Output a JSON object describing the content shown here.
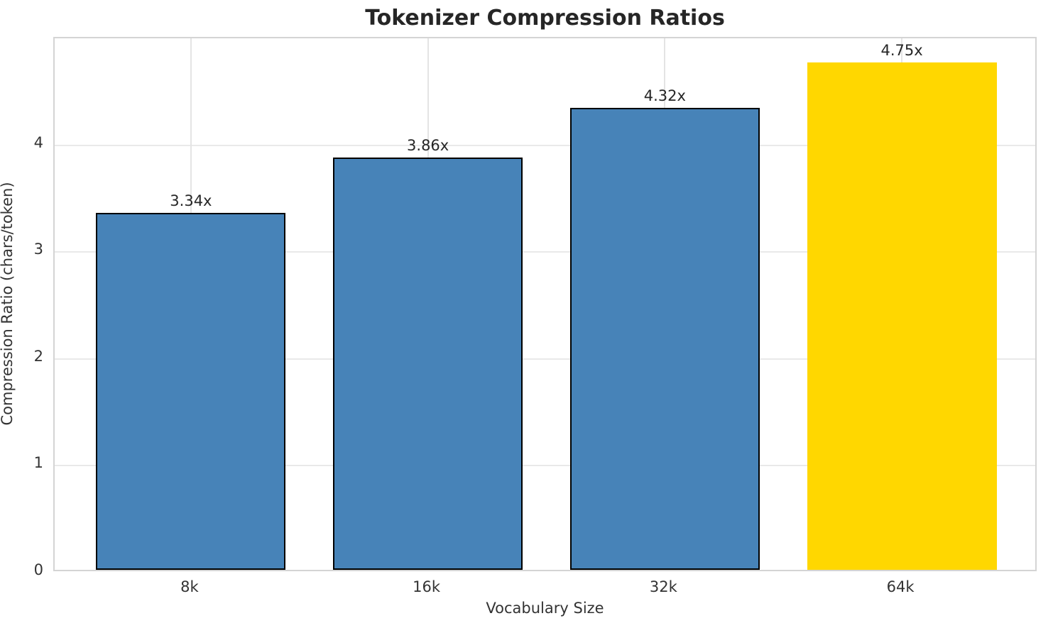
{
  "chart_data": {
    "type": "bar",
    "title": "Tokenizer Compression Ratios",
    "xlabel": "Vocabulary Size",
    "ylabel": "Compression Ratio (chars/token)",
    "categories": [
      "8k",
      "16k",
      "32k",
      "64k"
    ],
    "values": [
      3.34,
      3.86,
      4.32,
      4.75
    ],
    "value_labels": [
      "3.34x",
      "3.86x",
      "4.32x",
      "4.75x"
    ],
    "bar_colors": [
      "#4783b8",
      "#4783b8",
      "#4783b8",
      "#ffd700"
    ],
    "bar_edge_colors": [
      "#000000",
      "#000000",
      "#000000",
      "none"
    ],
    "highlight_color": "#ffd700",
    "series_color": "#4783b8",
    "ylim": [
      0,
      5
    ],
    "yticks": [
      0,
      1,
      2,
      3,
      4
    ],
    "xlim": [
      -0.575,
      3.575
    ],
    "bar_width": 0.8,
    "grid": true,
    "legend_position": "none"
  }
}
